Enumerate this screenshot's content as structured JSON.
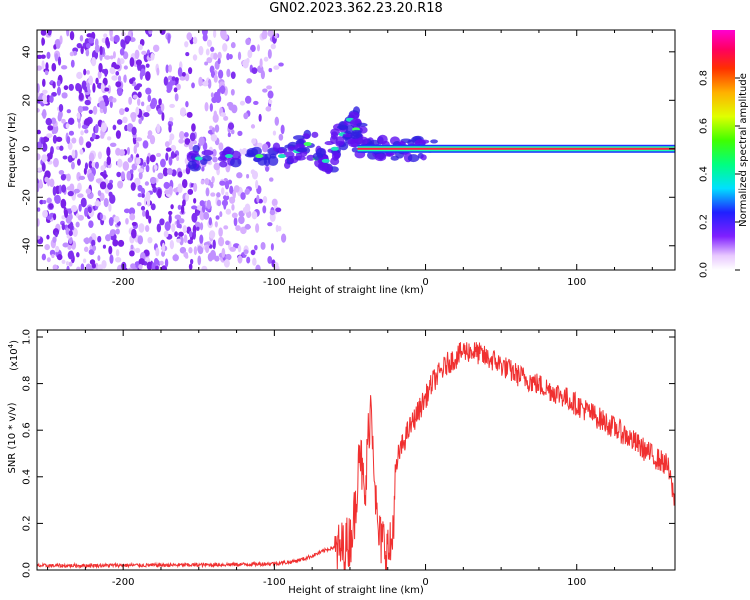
{
  "title": "GN02.2023.362.23.20.R18",
  "chart_data": [
    {
      "type": "heatmap",
      "xlabel": "Height of straight line (km)",
      "ylabel": "Frequency (Hz)",
      "xlim": [
        -257,
        165
      ],
      "ylim": [
        -50,
        49
      ],
      "x_ticks": [
        -200,
        -100,
        0,
        100
      ],
      "x_tick_labels": [
        "-200",
        "-100",
        "0",
        "100"
      ],
      "y_ticks": [
        -40,
        -20,
        0,
        20,
        40
      ],
      "y_tick_labels": [
        "-40",
        "-20",
        "0",
        "20",
        "40"
      ],
      "colorbar": {
        "label": "Normalized spectral amplitude",
        "range": [
          0,
          1
        ],
        "ticks": [
          0.0,
          0.2,
          0.4,
          0.6,
          0.8
        ],
        "tick_labels": [
          "0.0",
          "0.2",
          "0.4",
          "0.6",
          "0.8"
        ]
      },
      "grid": false
    },
    {
      "type": "line",
      "xlabel": "Height of straight line (km)",
      "ylabel": "SNR (10 * v/v)",
      "y_scale_label": "(x10",
      "y_scale_exponent": "4",
      "y_scale_close": ")",
      "xlim": [
        -257,
        165
      ],
      "ylim": [
        0,
        1.03
      ],
      "x_ticks": [
        -200,
        -100,
        0,
        100
      ],
      "x_tick_labels": [
        "-200",
        "-100",
        "0",
        "100"
      ],
      "y_ticks": [
        0,
        0.2,
        0.4,
        0.6,
        0.8,
        1.0
      ],
      "y_tick_labels": [
        "0.0",
        "0.2",
        "0.4",
        "0.6",
        "0.8",
        "1.0"
      ],
      "line_color": "#f03030",
      "series": [
        {
          "x": [
            -257,
            -240,
            -220,
            -200,
            -180,
            -160,
            -140,
            -120,
            -110,
            -100,
            -90,
            -80,
            -72,
            -65,
            -60,
            -55,
            -50,
            -46,
            -44,
            -42,
            -40,
            -38,
            -36,
            -34,
            -32,
            -30,
            -28,
            -26,
            -24,
            -22,
            -20,
            -18,
            -15,
            -12,
            -8,
            -4,
            0,
            5,
            10,
            15,
            20,
            25,
            30,
            35,
            40,
            45,
            50,
            55,
            60,
            70,
            80,
            90,
            100,
            110,
            120,
            130,
            140,
            150,
            160,
            165
          ],
          "y": [
            0.02,
            0.02,
            0.021,
            0.022,
            0.022,
            0.023,
            0.024,
            0.026,
            0.027,
            0.03,
            0.035,
            0.05,
            0.07,
            0.09,
            0.1,
            0.12,
            0.15,
            0.3,
            0.6,
            0.45,
            0.3,
            0.6,
            0.75,
            0.5,
            0.2,
            0.15,
            0.15,
            0.12,
            0.1,
            0.15,
            0.4,
            0.5,
            0.55,
            0.6,
            0.65,
            0.7,
            0.75,
            0.82,
            0.86,
            0.9,
            0.92,
            0.95,
            0.95,
            0.94,
            0.92,
            0.91,
            0.89,
            0.87,
            0.85,
            0.82,
            0.79,
            0.76,
            0.72,
            0.68,
            0.64,
            0.6,
            0.55,
            0.5,
            0.46,
            0.3
          ]
        }
      ],
      "grid": false
    }
  ]
}
